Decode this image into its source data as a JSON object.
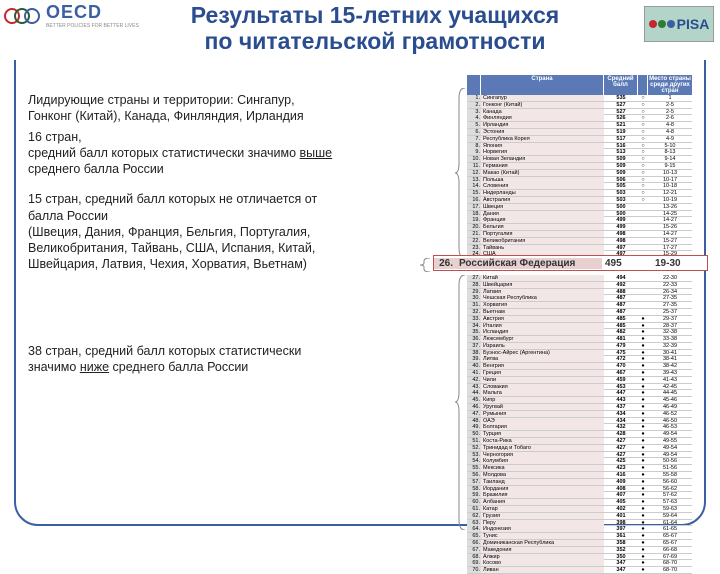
{
  "logos": {
    "oecd": {
      "text": "OECD",
      "sub": "BETTER POLICIES FOR BETTER LIVES",
      "ring_colors": [
        "#c7262c",
        "#2a5c3a",
        "#3a5fa3"
      ]
    },
    "pisa": {
      "text": "PISA",
      "dot_colors": [
        "#c7262c",
        "#2e7d32",
        "#3a5fa3"
      ]
    }
  },
  "title": {
    "line1": "Результаты 15-летних учащихся",
    "line2": "по читательской грамотности"
  },
  "left": {
    "block1": {
      "p1": "Лидирующие страны и территории: Сингапур, Гонконг (Китай), Канада, Финляндия, Ирландия",
      "p2_a": "16 стран,",
      "p2_b": "средний балл которых статистически значимо ",
      "p2_u": "выше",
      "p2_c": " среднего балла России"
    },
    "block2": {
      "p1": "15 стран, средний балл которых не отличается от балла России",
      "p2": "(Швеция, Дания, Франция, Бельгия, Португалия, Великобритания, Тайвань, США, Испания, Китай, Швейцария, Латвия, Чехия, Хорватия, Вьетнам)"
    },
    "block3": {
      "p1_a": "38 стран, средний балл которых статистически значимо ",
      "p1_u": "ниже",
      "p1_b": " среднего балла России"
    }
  },
  "table": {
    "headers": {
      "country": "Страна",
      "score": "Средний балл",
      "rank": "Место страны среди других стран"
    },
    "highlight": {
      "n": "26.",
      "country": "Российская Федерация",
      "score": "495",
      "range": "19-30"
    },
    "row_bg_default": "#f3e6e6",
    "rows": [
      {
        "n": 1,
        "c": "Сингапур",
        "s": 535,
        "m": "○",
        "r": "1"
      },
      {
        "n": 2,
        "c": "Гонконг (Китай)",
        "s": 527,
        "m": "○",
        "r": "2-5"
      },
      {
        "n": 3,
        "c": "Канада",
        "s": 527,
        "m": "○",
        "r": "2-5"
      },
      {
        "n": 4,
        "c": "Финляндия",
        "s": 526,
        "m": "○",
        "r": "2-6"
      },
      {
        "n": 5,
        "c": "Ирландия",
        "s": 521,
        "m": "○",
        "r": "4-8"
      },
      {
        "n": 6,
        "c": "Эстония",
        "s": 519,
        "m": "○",
        "r": "4-8"
      },
      {
        "n": 7,
        "c": "Республика Корея",
        "s": 517,
        "m": "○",
        "r": "4-9"
      },
      {
        "n": 8,
        "c": "Япония",
        "s": 516,
        "m": "○",
        "r": "5-10"
      },
      {
        "n": 9,
        "c": "Норвегия",
        "s": 513,
        "m": "○",
        "r": "8-13"
      },
      {
        "n": 10,
        "c": "Новая Зеландия",
        "s": 509,
        "m": "○",
        "r": "9-14"
      },
      {
        "n": 11,
        "c": "Германия",
        "s": 509,
        "m": "○",
        "r": "9-15"
      },
      {
        "n": 12,
        "c": "Макао (Китай)",
        "s": 509,
        "m": "○",
        "r": "10-13"
      },
      {
        "n": 13,
        "c": "Польша",
        "s": 506,
        "m": "○",
        "r": "10-17"
      },
      {
        "n": 14,
        "c": "Словения",
        "s": 505,
        "m": "○",
        "r": "10-18"
      },
      {
        "n": 15,
        "c": "Нидерланды",
        "s": 503,
        "m": "○",
        "r": "12-21"
      },
      {
        "n": 16,
        "c": "Австралия",
        "s": 503,
        "m": "○",
        "r": "10-19"
      },
      {
        "n": 17,
        "c": "Швеция",
        "s": 500,
        "m": "",
        "r": "13-26"
      },
      {
        "n": 18,
        "c": "Дания",
        "s": 500,
        "m": "",
        "r": "14-25"
      },
      {
        "n": 19,
        "c": "Франция",
        "s": 499,
        "m": "",
        "r": "14-27"
      },
      {
        "n": 20,
        "c": "Бельгия",
        "s": 499,
        "m": "",
        "r": "15-26"
      },
      {
        "n": 21,
        "c": "Португалия",
        "s": 498,
        "m": "",
        "r": "14-27"
      },
      {
        "n": 22,
        "c": "Великобритания",
        "s": 498,
        "m": "",
        "r": "15-27"
      },
      {
        "n": 23,
        "c": "Тайвань",
        "s": 497,
        "m": "",
        "r": "17-27"
      },
      {
        "n": 24,
        "c": "США",
        "s": 497,
        "m": "",
        "r": "15-29"
      },
      {
        "n": 25,
        "c": "Испания",
        "s": 496,
        "m": "",
        "r": "18-28"
      },
      {
        "n": 27,
        "c": "Китай",
        "s": 494,
        "m": "",
        "r": "22-30"
      },
      {
        "n": 28,
        "c": "Швейцария",
        "s": 492,
        "m": "",
        "r": "22-33"
      },
      {
        "n": 29,
        "c": "Латвия",
        "s": 488,
        "m": "",
        "r": "26-34"
      },
      {
        "n": 30,
        "c": "Чешская Республика",
        "s": 487,
        "m": "",
        "r": "27-35"
      },
      {
        "n": 31,
        "c": "Хорватия",
        "s": 487,
        "m": "",
        "r": "27-35"
      },
      {
        "n": 32,
        "c": "Вьетнам",
        "s": 487,
        "m": "",
        "r": "25-37"
      },
      {
        "n": 33,
        "c": "Австрия",
        "s": 485,
        "m": "●",
        "r": "29-37"
      },
      {
        "n": 34,
        "c": "Италия",
        "s": 485,
        "m": "●",
        "r": "28-37"
      },
      {
        "n": 35,
        "c": "Исландия",
        "s": 482,
        "m": "●",
        "r": "32-38"
      },
      {
        "n": 36,
        "c": "Люксембург",
        "s": 481,
        "m": "●",
        "r": "33-38"
      },
      {
        "n": 37,
        "c": "Израиль",
        "s": 479,
        "m": "●",
        "r": "32-39"
      },
      {
        "n": 38,
        "c": "Буэнос-Айрес (Аргентина)",
        "s": 475,
        "m": "●",
        "r": "30-41"
      },
      {
        "n": 39,
        "c": "Литва",
        "s": 472,
        "m": "●",
        "r": "38-41"
      },
      {
        "n": 40,
        "c": "Венгрия",
        "s": 470,
        "m": "●",
        "r": "38-42"
      },
      {
        "n": 41,
        "c": "Греция",
        "s": 467,
        "m": "●",
        "r": "39-43"
      },
      {
        "n": 42,
        "c": "Чили",
        "s": 459,
        "m": "●",
        "r": "41-43"
      },
      {
        "n": 43,
        "c": "Словакия",
        "s": 453,
        "m": "●",
        "r": "42-45"
      },
      {
        "n": 44,
        "c": "Мальта",
        "s": 447,
        "m": "●",
        "r": "44-45"
      },
      {
        "n": 45,
        "c": "Кипр",
        "s": 443,
        "m": "●",
        "r": "45-46"
      },
      {
        "n": 46,
        "c": "Уругвай",
        "s": 437,
        "m": "●",
        "r": "46-49"
      },
      {
        "n": 47,
        "c": "Румыния",
        "s": 434,
        "m": "●",
        "r": "46-52"
      },
      {
        "n": 48,
        "c": "ОАЭ",
        "s": 434,
        "m": "●",
        "r": "46-50"
      },
      {
        "n": 49,
        "c": "Болгария",
        "s": 432,
        "m": "●",
        "r": "46-53"
      },
      {
        "n": 50,
        "c": "Турция",
        "s": 428,
        "m": "●",
        "r": "49-54"
      },
      {
        "n": 51,
        "c": "Коста-Рика",
        "s": 427,
        "m": "●",
        "r": "49-55"
      },
      {
        "n": 52,
        "c": "Тринидад и Тобаго",
        "s": 427,
        "m": "●",
        "r": "49-54"
      },
      {
        "n": 53,
        "c": "Черногория",
        "s": 427,
        "m": "●",
        "r": "49-54"
      },
      {
        "n": 54,
        "c": "Колумбия",
        "s": 425,
        "m": "●",
        "r": "50-56"
      },
      {
        "n": 55,
        "c": "Мексика",
        "s": 423,
        "m": "●",
        "r": "51-56"
      },
      {
        "n": 56,
        "c": "Молдова",
        "s": 416,
        "m": "●",
        "r": "55-58"
      },
      {
        "n": 57,
        "c": "Таиланд",
        "s": 409,
        "m": "●",
        "r": "56-60"
      },
      {
        "n": 58,
        "c": "Иордания",
        "s": 408,
        "m": "●",
        "r": "56-62"
      },
      {
        "n": 59,
        "c": "Бразилия",
        "s": 407,
        "m": "●",
        "r": "57-62"
      },
      {
        "n": 60,
        "c": "Албания",
        "s": 405,
        "m": "●",
        "r": "57-63"
      },
      {
        "n": 61,
        "c": "Катар",
        "s": 402,
        "m": "●",
        "r": "59-63"
      },
      {
        "n": 62,
        "c": "Грузия",
        "s": 401,
        "m": "●",
        "r": "59-64"
      },
      {
        "n": 63,
        "c": "Перу",
        "s": 398,
        "m": "●",
        "r": "61-64"
      },
      {
        "n": 64,
        "c": "Индонезия",
        "s": 397,
        "m": "●",
        "r": "61-65"
      },
      {
        "n": 65,
        "c": "Тунис",
        "s": 361,
        "m": "●",
        "r": "65-67"
      },
      {
        "n": 66,
        "c": "Доминиканская Республика",
        "s": 358,
        "m": "●",
        "r": "65-67"
      },
      {
        "n": 67,
        "c": "Македония",
        "s": 352,
        "m": "●",
        "r": "66-68"
      },
      {
        "n": 68,
        "c": "Алжир",
        "s": 350,
        "m": "●",
        "r": "67-69"
      },
      {
        "n": 69,
        "c": "Косово",
        "s": 347,
        "m": "●",
        "r": "68-70"
      },
      {
        "n": 70,
        "c": "Ливан",
        "s": 347,
        "m": "●",
        "r": "68-70"
      }
    ]
  },
  "braces": {
    "color": "#888"
  }
}
